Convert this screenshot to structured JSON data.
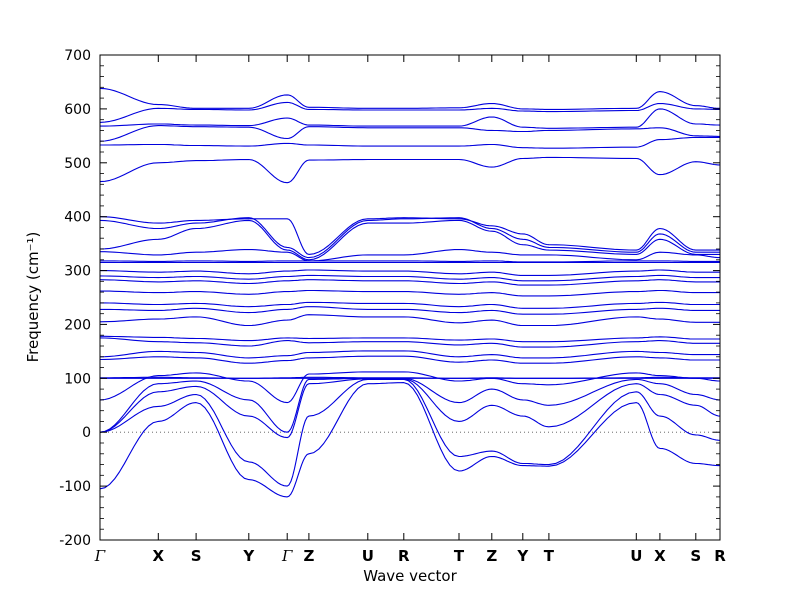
{
  "chart_data": {
    "type": "line",
    "title": "",
    "xlabel": "Wave vector",
    "ylabel": "Frequency (cm⁻¹)",
    "ylim": [
      -200,
      700
    ],
    "yticks": [
      -200,
      -100,
      0,
      100,
      200,
      300,
      400,
      500,
      600,
      700
    ],
    "y_minor_step": 20,
    "grid": false,
    "legend": "none",
    "line_color": "#0000dd",
    "zero_line_y": 0,
    "kpoints": [
      {
        "label": "Γ",
        "pos": 0.0
      },
      {
        "label": "X",
        "pos": 0.094
      },
      {
        "label": "S",
        "pos": 0.155
      },
      {
        "label": "Y",
        "pos": 0.24
      },
      {
        "label": "Γ",
        "pos": 0.302
      },
      {
        "label": "Z",
        "pos": 0.337
      },
      {
        "label": "U",
        "pos": 0.432
      },
      {
        "label": "R",
        "pos": 0.49
      },
      {
        "label": "T",
        "pos": 0.579
      },
      {
        "label": "Z",
        "pos": 0.632
      },
      {
        "label": "Y",
        "pos": 0.682
      },
      {
        "label": "T",
        "pos": 0.724
      },
      {
        "label": "U",
        "pos": 0.865
      },
      {
        "label": "X",
        "pos": 0.903
      },
      {
        "label": "S",
        "pos": 0.961
      },
      {
        "label": "R",
        "pos": 1.0
      }
    ],
    "bands": [
      [
        -105,
        20,
        55,
        -88,
        -120,
        -40,
        90,
        92,
        -72,
        -45,
        -62,
        -63,
        55,
        -30,
        -58,
        -62
      ],
      [
        0,
        48,
        70,
        -55,
        -100,
        30,
        98,
        98,
        -45,
        -35,
        -58,
        -60,
        75,
        30,
        -5,
        -15
      ],
      [
        0,
        75,
        85,
        30,
        -10,
        90,
        99,
        99,
        20,
        50,
        30,
        10,
        90,
        70,
        50,
        30
      ],
      [
        0,
        90,
        95,
        60,
        0,
        98,
        100,
        100,
        55,
        80,
        60,
        50,
        98,
        90,
        70,
        60
      ],
      [
        100,
        100,
        100,
        100,
        100,
        100,
        100,
        100,
        100,
        100,
        100,
        100,
        100,
        100,
        100,
        100
      ],
      [
        101,
        102,
        101,
        100,
        101,
        102,
        101,
        101,
        100,
        101,
        100,
        100,
        101,
        102,
        101,
        101
      ],
      [
        60,
        105,
        110,
        95,
        55,
        108,
        112,
        112,
        95,
        100,
        90,
        88,
        110,
        105,
        100,
        95
      ],
      [
        135,
        140,
        138,
        128,
        133,
        138,
        141,
        141,
        130,
        134,
        128,
        128,
        140,
        138,
        134,
        134
      ],
      [
        140,
        150,
        148,
        138,
        142,
        148,
        151,
        151,
        140,
        144,
        138,
        138,
        150,
        148,
        144,
        144
      ],
      [
        175,
        168,
        166,
        160,
        170,
        166,
        168,
        168,
        162,
        165,
        158,
        158,
        168,
        170,
        165,
        165
      ],
      [
        178,
        176,
        174,
        170,
        175,
        174,
        175,
        175,
        171,
        173,
        168,
        168,
        175,
        177,
        173,
        173
      ],
      [
        205,
        210,
        214,
        198,
        208,
        218,
        214,
        214,
        203,
        208,
        198,
        198,
        214,
        210,
        204,
        204
      ],
      [
        228,
        226,
        230,
        222,
        228,
        233,
        228,
        228,
        222,
        226,
        219,
        219,
        228,
        230,
        226,
        226
      ],
      [
        240,
        237,
        239,
        233,
        237,
        241,
        239,
        239,
        233,
        237,
        230,
        230,
        239,
        241,
        237,
        237
      ],
      [
        262,
        259,
        261,
        256,
        261,
        263,
        261,
        261,
        256,
        259,
        253,
        253,
        261,
        263,
        259,
        259
      ],
      [
        283,
        279,
        281,
        276,
        281,
        283,
        281,
        281,
        276,
        279,
        273,
        273,
        281,
        283,
        279,
        279
      ],
      [
        290,
        287,
        289,
        284,
        289,
        291,
        289,
        289,
        284,
        287,
        281,
        281,
        289,
        291,
        287,
        287
      ],
      [
        300,
        297,
        299,
        294,
        299,
        301,
        299,
        299,
        294,
        297,
        291,
        291,
        299,
        301,
        297,
        297
      ],
      [
        315,
        315,
        315,
        315,
        315,
        315,
        315,
        315,
        315,
        315,
        315,
        315,
        315,
        315,
        315,
        315
      ],
      [
        318,
        317,
        318,
        317,
        318,
        318,
        318,
        318,
        317,
        318,
        316,
        316,
        318,
        318,
        317,
        317
      ],
      [
        335,
        329,
        334,
        339,
        334,
        318,
        329,
        329,
        339,
        334,
        329,
        329,
        320,
        334,
        329,
        324
      ],
      [
        340,
        358,
        378,
        393,
        338,
        320,
        388,
        388,
        393,
        373,
        348,
        338,
        330,
        358,
        330,
        330
      ],
      [
        393,
        378,
        388,
        398,
        343,
        324,
        393,
        396,
        398,
        378,
        358,
        343,
        334,
        368,
        334,
        334
      ],
      [
        400,
        388,
        393,
        396,
        396,
        330,
        396,
        398,
        396,
        383,
        368,
        348,
        338,
        378,
        338,
        338
      ],
      [
        465,
        500,
        504,
        506,
        463,
        505,
        506,
        506,
        506,
        492,
        508,
        510,
        508,
        478,
        502,
        496
      ],
      [
        533,
        534,
        532,
        531,
        536,
        533,
        531,
        531,
        531,
        534,
        528,
        527,
        529,
        543,
        547,
        547
      ],
      [
        540,
        569,
        567,
        566,
        545,
        567,
        565,
        565,
        565,
        560,
        558,
        560,
        563,
        565,
        550,
        549
      ],
      [
        568,
        572,
        570,
        569,
        583,
        570,
        568,
        568,
        568,
        585,
        566,
        564,
        566,
        600,
        572,
        570
      ],
      [
        575,
        601,
        599,
        598,
        612,
        599,
        598,
        598,
        598,
        601,
        596,
        595,
        597,
        610,
        600,
        599
      ],
      [
        638,
        608,
        601,
        601,
        626,
        603,
        601,
        601,
        602,
        610,
        600,
        599,
        601,
        632,
        606,
        601
      ]
    ]
  }
}
